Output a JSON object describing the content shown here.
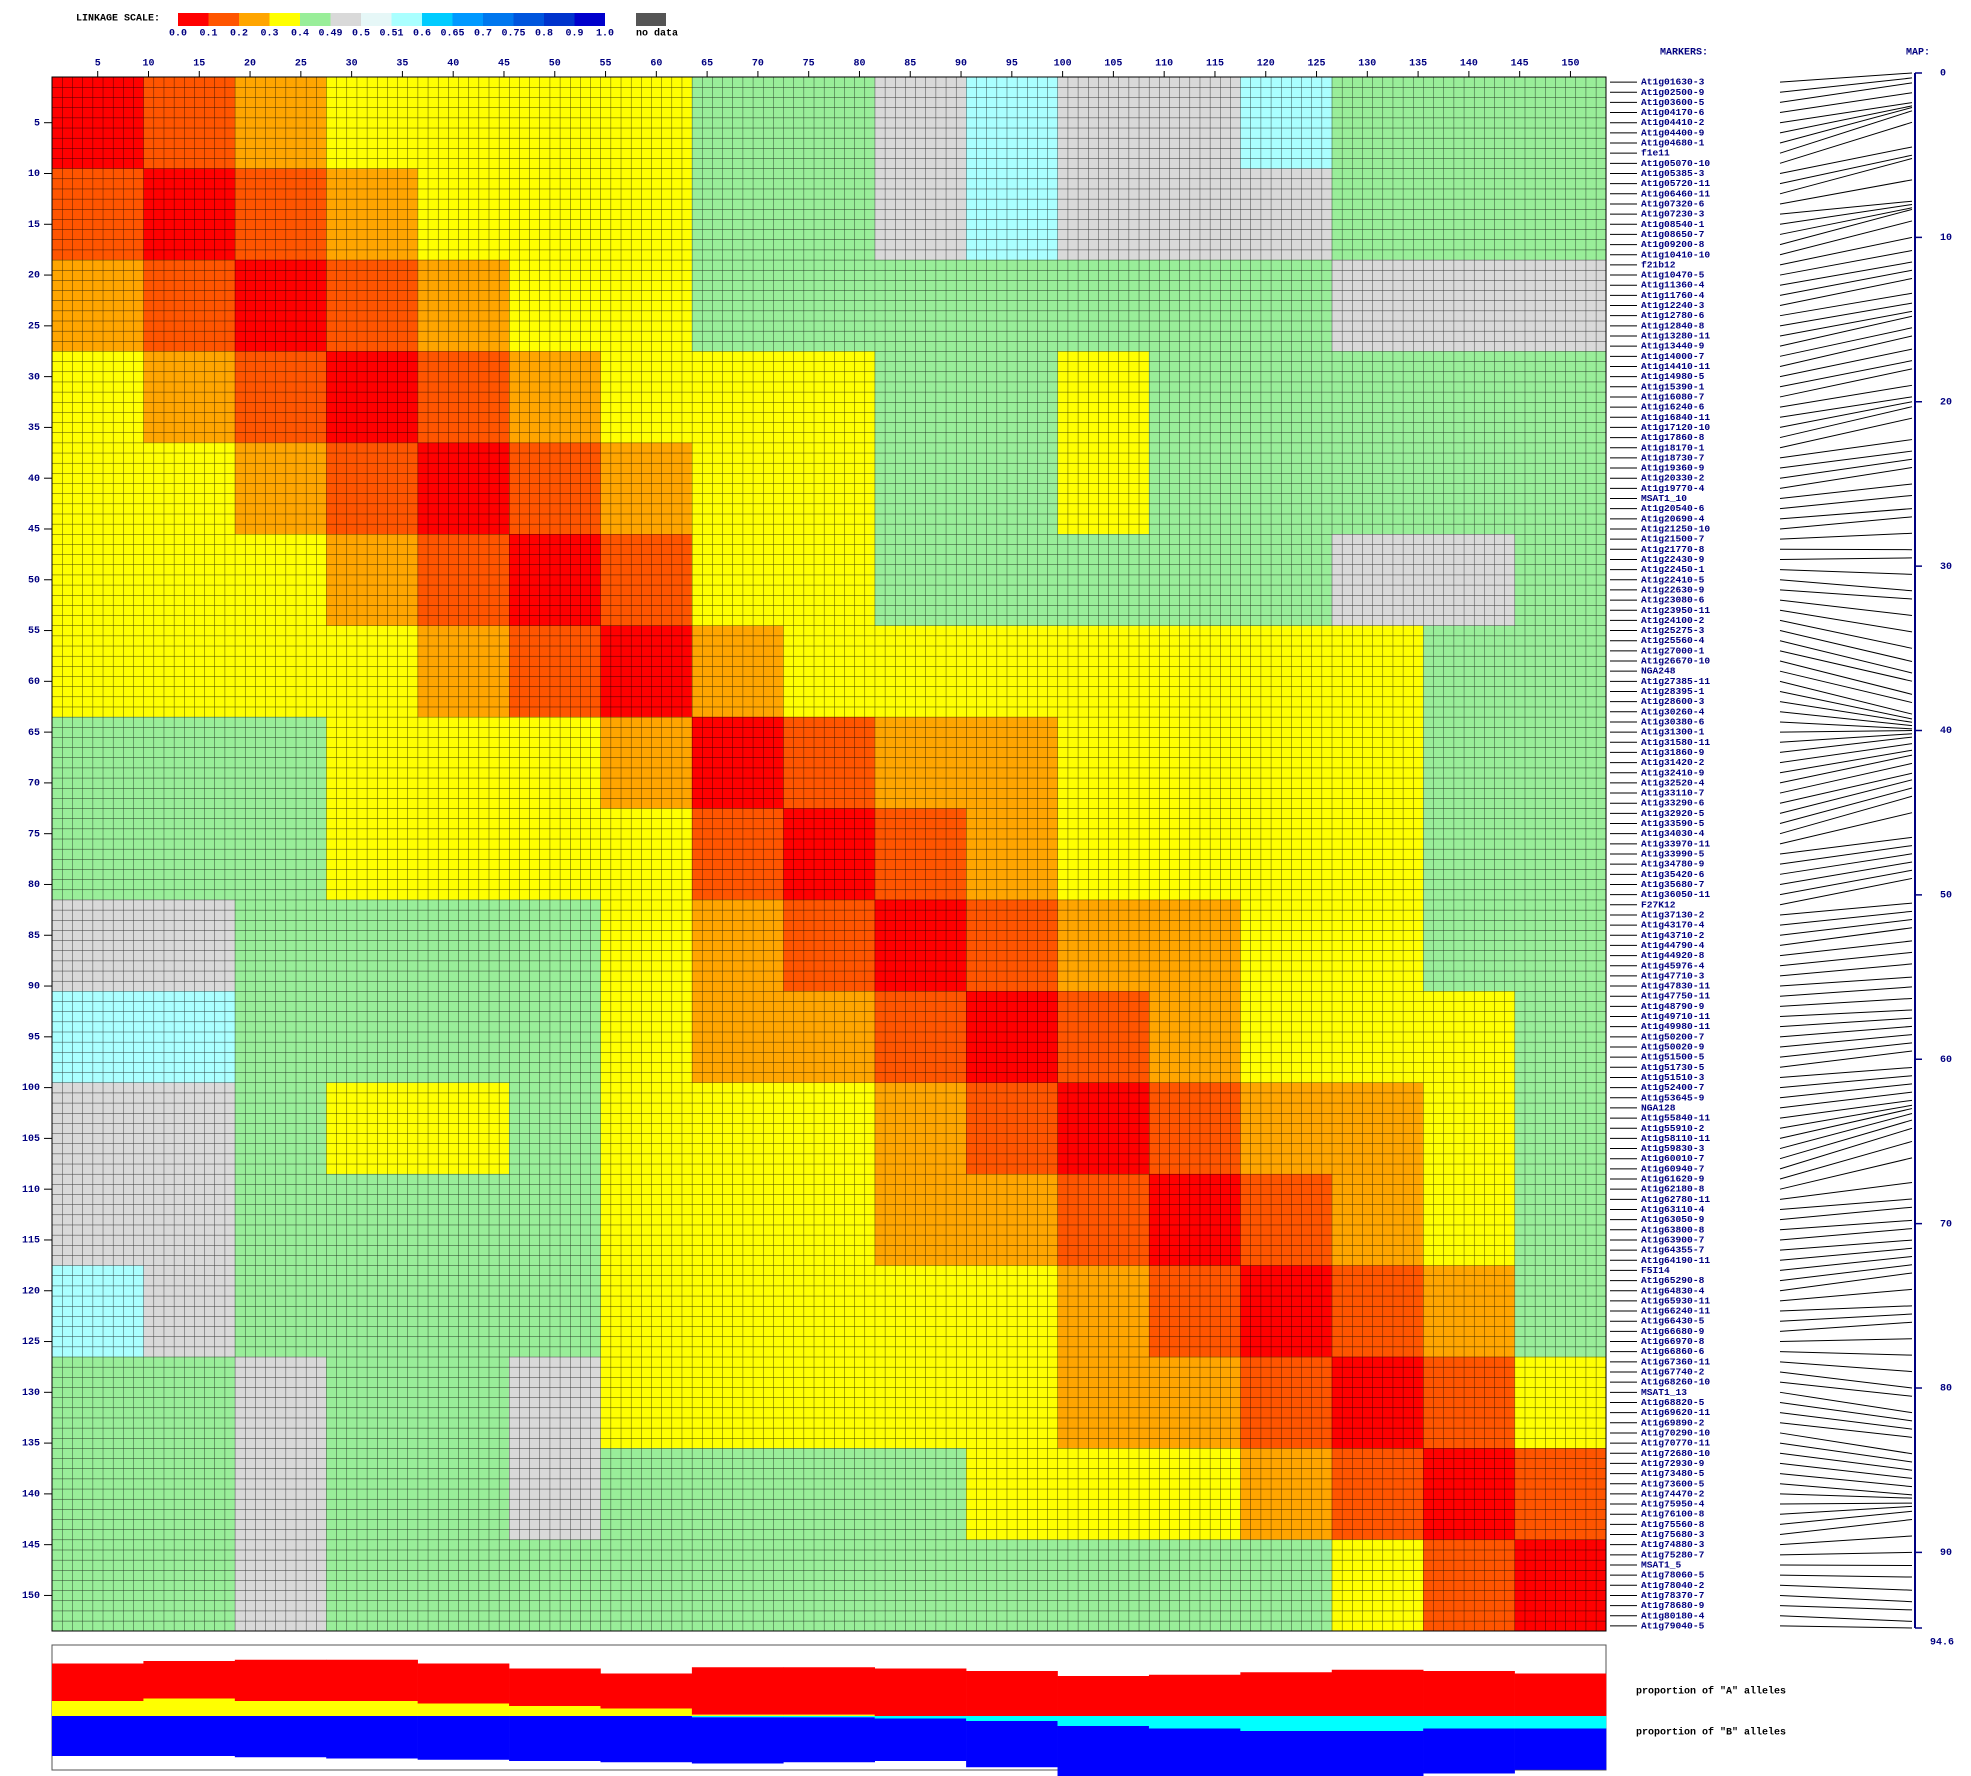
{
  "chart_data": {
    "type": "heatmap",
    "scale_title": "LINKAGE SCALE:",
    "scale_ticks": [
      {
        "value": 0,
        "label": "0.0"
      },
      0.1,
      0.2,
      0.3,
      0.4,
      0.49,
      0.5,
      0.51,
      0.6,
      0.65,
      0.7,
      0.75,
      0.8,
      0.9,
      {
        "value": 1,
        "label": "1.0"
      }
    ],
    "scale_colors": [
      "#ff0000",
      "#ff5500",
      "#ffa500",
      "#ffff00",
      "#99ee99",
      "#d9d9d9",
      "#e6f7f7",
      "#aaffff",
      "#00ccff",
      "#0099ff",
      "#0077ee",
      "#0055dd",
      "#0033cc",
      "#0000cc"
    ],
    "no_data_label": "no data",
    "no_data_color": "#555555",
    "markers_title": "MARKERS:",
    "markers": [
      "At1g01630-3",
      "At1g02500-9",
      "At1g03600-5",
      "At1g04170-6",
      "At1g04410-2",
      "At1g04400-9",
      "At1g04680-1",
      "f1e11",
      "At1g05070-10",
      "At1g05385-3",
      "At1g05720-11",
      "At1g06460-11",
      "At1g07320-6",
      "At1g07230-3",
      "At1g08540-1",
      "At1g08650-7",
      "At1g09200-8",
      "At1g10410-10",
      "f21b12",
      "At1g10470-5",
      "At1g11360-4",
      "At1g11760-4",
      "At1g12240-3",
      "At1g12780-6",
      "At1g12840-8",
      "At1g13280-11",
      "At1g13440-9",
      "At1g14000-7",
      "At1g14410-11",
      "At1g14980-5",
      "At1g15390-1",
      "At1g16080-7",
      "At1g16240-6",
      "At1g16840-11",
      "At1g17120-10",
      "At1g17860-8",
      "At1g18170-1",
      "At1g18730-7",
      "At1g19360-9",
      "At1g20330-2",
      "At1g19770-4",
      "MSAT1_10",
      "At1g20540-6",
      "At1g20690-4",
      "At1g21250-10",
      "At1g21500-7",
      "At1g21770-8",
      "At1g22430-9",
      "At1g22450-1",
      "At1g22410-5",
      "At1g22630-9",
      "At1g23080-6",
      "At1g23950-11",
      "At1g24100-2",
      "At1g25275-3",
      "At1g25560-4",
      "At1g27000-1",
      "At1g26670-10",
      "NGA248",
      "At1g27385-11",
      "At1g28395-1",
      "At1g28600-3",
      "At1g30260-4",
      "At1g30380-6",
      "At1g31300-1",
      "At1g31580-11",
      "At1g31860-9",
      "At1g31420-2",
      "At1g32410-9",
      "At1g32520-4",
      "At1g33110-7",
      "At1g33290-6",
      "At1g32920-5",
      "At1g33590-5",
      "At1g34030-4",
      "At1g33970-11",
      "At1g33990-5",
      "At1g34780-9",
      "At1g35420-6",
      "At1g35680-7",
      "At1g36050-11",
      "F27K12",
      "At1g37130-2",
      "At1g43170-4",
      "At1g43710-2",
      "At1g44790-4",
      "At1g44920-8",
      "At1g45976-4",
      "At1g47710-3",
      "At1g47830-11",
      "At1g47750-11",
      "At1g48790-9",
      "At1g49710-11",
      "At1g49980-11",
      "At1g50200-7",
      "At1g50020-9",
      "At1g51500-5",
      "At1g51730-5",
      "At1g51510-3",
      "At1g52400-7",
      "At1g53645-9",
      "NGA128",
      "At1g55840-11",
      "At1g55910-2",
      "At1g58110-11",
      "At1g59830-3",
      "At1g60010-7",
      "At1g60940-7",
      "At1g61620-9",
      "At1g62180-8",
      "At1g62780-11",
      "At1g63110-4",
      "At1g63050-9",
      "At1g63800-8",
      "At1g63900-7",
      "At1g64355-7",
      "At1g64190-11",
      "F5I14",
      "At1g65290-8",
      "At1g64830-4",
      "At1g65930-11",
      "At1g66240-11",
      "At1g66430-5",
      "At1g66680-9",
      "At1g66970-8",
      "At1g66860-6",
      "At1g67360-11",
      "At1g67740-2",
      "At1g68260-10",
      "MSAT1_13",
      "At1g68820-5",
      "At1g69620-11",
      "At1g69890-2",
      "At1g70290-10",
      "At1g70770-11",
      "At1g72680-10",
      "At1g72930-9",
      "At1g73480-5",
      "At1g73600-5",
      "At1g74470-2",
      "At1g75950-4",
      "At1g76100-8",
      "At1g75560-8",
      "At1g75680-3",
      "At1g74880-3",
      "At1g75280-7",
      "MSAT1_5",
      "At1g78060-5",
      "At1g78040-2",
      "At1g78370-7",
      "At1g78680-9",
      "At1g80180-4",
      "At1g79040-5"
    ],
    "xticks": [
      5,
      10,
      15,
      20,
      25,
      30,
      35,
      40,
      45,
      50,
      55,
      60,
      65,
      70,
      75,
      80,
      85,
      90,
      95,
      100,
      105,
      110,
      115,
      120,
      125,
      130,
      135,
      140,
      145,
      150
    ],
    "yticks": [
      5,
      10,
      15,
      20,
      25,
      30,
      35,
      40,
      45,
      50,
      55,
      60,
      65,
      70,
      75,
      80,
      85,
      90,
      95,
      100,
      105,
      110,
      115,
      120,
      125,
      130,
      135,
      140,
      145,
      150
    ],
    "matrix": [
      [
        0.05,
        0.15,
        0.25,
        0.35,
        0.35,
        0.35,
        0.35,
        0.45,
        0.45,
        0.495,
        0.55,
        0.495,
        0.495,
        0.55,
        0.45,
        0.45,
        0.45
      ],
      [
        0.15,
        0.05,
        0.15,
        0.25,
        0.35,
        0.35,
        0.35,
        0.45,
        0.45,
        0.495,
        0.55,
        0.495,
        0.495,
        0.495,
        0.45,
        0.45,
        0.45
      ],
      [
        0.25,
        0.15,
        0.05,
        0.15,
        0.25,
        0.35,
        0.35,
        0.45,
        0.45,
        0.45,
        0.45,
        0.45,
        0.45,
        0.45,
        0.495,
        0.495,
        0.495
      ],
      [
        0.35,
        0.25,
        0.15,
        0.05,
        0.15,
        0.25,
        0.35,
        0.35,
        0.38,
        0.45,
        0.45,
        0.35,
        0.45,
        0.45,
        0.45,
        0.45,
        0.45
      ],
      [
        0.35,
        0.35,
        0.25,
        0.15,
        0.05,
        0.15,
        0.25,
        0.35,
        0.38,
        0.45,
        0.45,
        0.38,
        0.45,
        0.45,
        0.45,
        0.45,
        0.45
      ],
      [
        0.35,
        0.35,
        0.35,
        0.25,
        0.15,
        0.05,
        0.15,
        0.35,
        0.35,
        0.45,
        0.45,
        0.45,
        0.45,
        0.45,
        0.495,
        0.495,
        0.45
      ],
      [
        0.35,
        0.35,
        0.35,
        0.35,
        0.25,
        0.15,
        0.05,
        0.25,
        0.35,
        0.35,
        0.35,
        0.35,
        0.35,
        0.35,
        0.35,
        0.45,
        0.45
      ],
      [
        0.45,
        0.45,
        0.45,
        0.35,
        0.35,
        0.35,
        0.25,
        0.05,
        0.15,
        0.25,
        0.25,
        0.35,
        0.35,
        0.35,
        0.35,
        0.45,
        0.45
      ],
      [
        0.45,
        0.45,
        0.45,
        0.38,
        0.38,
        0.35,
        0.35,
        0.15,
        0.05,
        0.15,
        0.25,
        0.35,
        0.35,
        0.35,
        0.35,
        0.45,
        0.45
      ],
      [
        0.495,
        0.495,
        0.45,
        0.45,
        0.45,
        0.45,
        0.35,
        0.25,
        0.15,
        0.05,
        0.15,
        0.25,
        0.25,
        0.35,
        0.35,
        0.45,
        0.45
      ],
      [
        0.55,
        0.55,
        0.45,
        0.45,
        0.45,
        0.45,
        0.35,
        0.25,
        0.25,
        0.15,
        0.05,
        0.15,
        0.25,
        0.35,
        0.35,
        0.35,
        0.45
      ],
      [
        0.495,
        0.495,
        0.45,
        0.35,
        0.38,
        0.45,
        0.35,
        0.35,
        0.35,
        0.25,
        0.15,
        0.05,
        0.15,
        0.25,
        0.25,
        0.35,
        0.45
      ],
      [
        0.495,
        0.495,
        0.45,
        0.45,
        0.45,
        0.45,
        0.35,
        0.35,
        0.35,
        0.25,
        0.25,
        0.15,
        0.05,
        0.15,
        0.25,
        0.35,
        0.45
      ],
      [
        0.55,
        0.495,
        0.45,
        0.45,
        0.45,
        0.45,
        0.35,
        0.35,
        0.35,
        0.35,
        0.35,
        0.25,
        0.15,
        0.05,
        0.15,
        0.25,
        0.45
      ],
      [
        0.45,
        0.45,
        0.495,
        0.45,
        0.45,
        0.495,
        0.35,
        0.35,
        0.35,
        0.35,
        0.35,
        0.25,
        0.25,
        0.15,
        0.05,
        0.15,
        0.35
      ],
      [
        0.45,
        0.45,
        0.495,
        0.45,
        0.45,
        0.495,
        0.45,
        0.45,
        0.45,
        0.45,
        0.35,
        0.35,
        0.35,
        0.25,
        0.15,
        0.05,
        0.15
      ],
      [
        0.45,
        0.45,
        0.495,
        0.45,
        0.45,
        0.45,
        0.45,
        0.45,
        0.45,
        0.45,
        0.45,
        0.45,
        0.45,
        0.45,
        0.35,
        0.15,
        0.05
      ]
    ],
    "map_title": "MAP:",
    "map_ylim": [
      0,
      94.6
    ],
    "map_ticks": [
      0,
      10,
      20,
      30,
      40,
      50,
      60,
      70,
      80,
      90,
      94.6
    ],
    "map_positions": [
      0,
      0.3,
      0.6,
      1.2,
      1.8,
      2.0,
      2.1,
      2.3,
      3.0,
      4.5,
      5.0,
      5.2,
      6.5,
      7.8,
      8.0,
      8.2,
      8.3,
      9.0,
      10.0,
      10.8,
      11.5,
      12.0,
      12.5,
      13.4,
      14.0,
      14.5,
      14.8,
      15.5,
      16.0,
      16.8,
      17.5,
      18.0,
      19.0,
      19.7,
      20.0,
      20.3,
      21.0,
      22.3,
      23.0,
      23.5,
      24.0,
      25.0,
      25.7,
      26.5,
      27.0,
      28.0,
      29.0,
      29.5,
      30.5,
      31.5,
      32.0,
      33.0,
      34.0,
      35.0,
      35.8,
      36.5,
      37.0,
      37.8,
      38.3,
      39.0,
      39.3,
      39.5,
      39.7,
      39.9,
      40.0,
      40.2,
      40.4,
      40.8,
      41.2,
      41.5,
      42.0,
      42.6,
      43.0,
      43.5,
      44.0,
      45.0,
      46.5,
      47.0,
      47.5,
      48.0,
      48.5,
      49.0,
      50.5,
      51.0,
      51.5,
      52.0,
      52.8,
      53.5,
      54.2,
      55.0,
      55.6,
      56.3,
      57.0,
      57.5,
      58.0,
      58.5,
      59.0,
      59.5,
      60.5,
      61.0,
      61.5,
      62.0,
      62.5,
      62.8,
      63.0,
      63.3,
      63.7,
      64.2,
      65.0,
      66.0,
      67.5,
      68.5,
      69.0,
      69.8,
      70.3,
      71.0,
      71.5,
      72.0,
      72.5,
      73.0,
      74.0,
      75.0,
      75.5,
      76.0,
      77.0,
      78.0,
      79.0,
      80.0,
      80.5,
      81.5,
      82.0,
      82.5,
      83.0,
      84.0,
      84.5,
      85.0,
      85.5,
      86.0,
      86.5,
      86.7,
      87.0,
      87.2,
      87.5,
      88.0,
      89.0,
      90.0,
      90.8,
      91.5,
      92.3,
      93.0,
      93.5,
      94.2,
      94.6
    ],
    "allele_series": [
      {
        "name": "proportion of \"A\" alleles",
        "color": "#ff0000",
        "values": [
          0.3,
          0.3,
          0.33,
          0.33,
          0.32,
          0.3,
          0.28,
          0.38,
          0.38,
          0.38,
          0.36,
          0.32,
          0.33,
          0.35,
          0.37,
          0.36,
          0.34
        ]
      },
      {
        "color": "#ffff00",
        "values": [
          0.12,
          0.14,
          0.12,
          0.12,
          0.1,
          0.08,
          0.06,
          0.01,
          0.01,
          0,
          0,
          0,
          0,
          0,
          0,
          0,
          0
        ]
      },
      {
        "name": "proportion of \"B\" alleles",
        "color": "#0000ff",
        "values": [
          0.32,
          0.32,
          0.33,
          0.34,
          0.35,
          0.36,
          0.37,
          0.37,
          0.36,
          0.34,
          0.37,
          0.4,
          0.4,
          0.38,
          0.38,
          0.36,
          0.33
        ]
      },
      {
        "color": "#00ffff",
        "values": [
          0,
          0,
          0,
          0,
          0,
          0,
          0,
          0.01,
          0.01,
          0.02,
          0.04,
          0.08,
          0.1,
          0.12,
          0.12,
          0.1,
          0.1
        ]
      }
    ]
  }
}
